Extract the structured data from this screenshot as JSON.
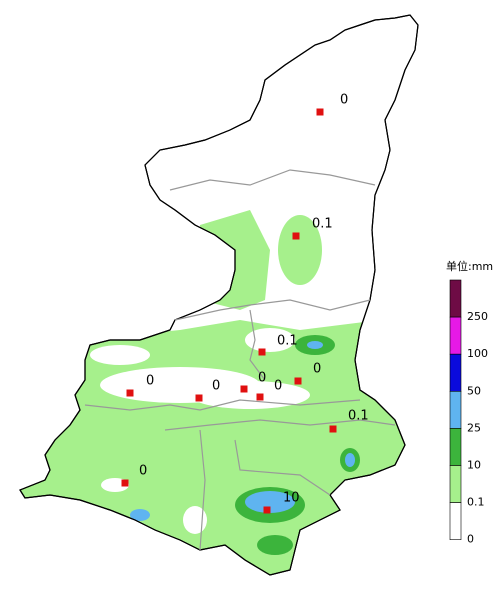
{
  "map": {
    "stations": [
      {
        "label": "0"
      },
      {
        "label": "0.1"
      },
      {
        "label": "0.1"
      },
      {
        "label": "0"
      },
      {
        "label": "0"
      },
      {
        "label": "0"
      },
      {
        "label": "0"
      },
      {
        "label": "0"
      },
      {
        "label": "0.1"
      },
      {
        "label": "0"
      },
      {
        "label": "10"
      }
    ],
    "legend": {
      "title": "单位:mm",
      "levels": [
        {
          "label": "250",
          "color": "#6e0b45"
        },
        {
          "label": "100",
          "color": "#e619e6"
        },
        {
          "label": "50",
          "color": "#0a0adc"
        },
        {
          "label": "25",
          "color": "#5fb4f0"
        },
        {
          "label": "10",
          "color": "#3cb43c"
        },
        {
          "label": "0.1",
          "color": "#a6f08c"
        },
        {
          "label": "0",
          "color": "#ffffff"
        }
      ]
    }
  }
}
